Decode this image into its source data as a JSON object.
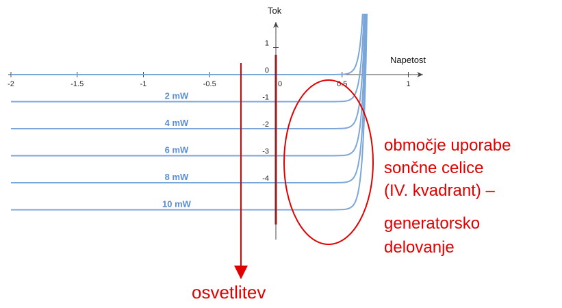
{
  "chart_data": {
    "type": "line",
    "title": "",
    "xlabel": "Napetost",
    "ylabel": "Tok",
    "xlim": [
      -2,
      1
    ],
    "ylim": [
      -4.3,
      2
    ],
    "x_ticks": [
      -2,
      -1.5,
      -1,
      -0.5,
      0,
      0.5,
      1
    ],
    "x_tick_labels": [
      "-2",
      "-1.5",
      "-1",
      "-0.5",
      "0",
      "0.5",
      "1"
    ],
    "y_ticks": [
      1,
      0,
      -1,
      -2,
      -3,
      -4
    ],
    "y_tick_labels": [
      "1",
      "0",
      "-1",
      "-2",
      "-3",
      "-4"
    ],
    "grid": false,
    "series": [
      {
        "name": "",
        "photocurrent": 0,
        "color": "#7aa6d8"
      },
      {
        "name": "2 mW",
        "photocurrent": 1.0,
        "color": "#7aa6d8"
      },
      {
        "name": "4 mW",
        "photocurrent": 2.0,
        "color": "#7aa6d8"
      },
      {
        "name": "6 mW",
        "photocurrent": 3.0,
        "color": "#7aa6d8"
      },
      {
        "name": "8 mW",
        "photocurrent": 4.0,
        "color": "#7aa6d8"
      },
      {
        "name": "10 mW",
        "photocurrent": 5.0,
        "color": "#7aa6d8"
      }
    ],
    "annotations": {
      "region_text": [
        "območje uporabe",
        "sončne celice",
        "(IV. kvadrant) –",
        "generatorsko",
        "delovanje"
      ],
      "arrow_label": "osvetlitev",
      "color": "#e00000"
    }
  }
}
